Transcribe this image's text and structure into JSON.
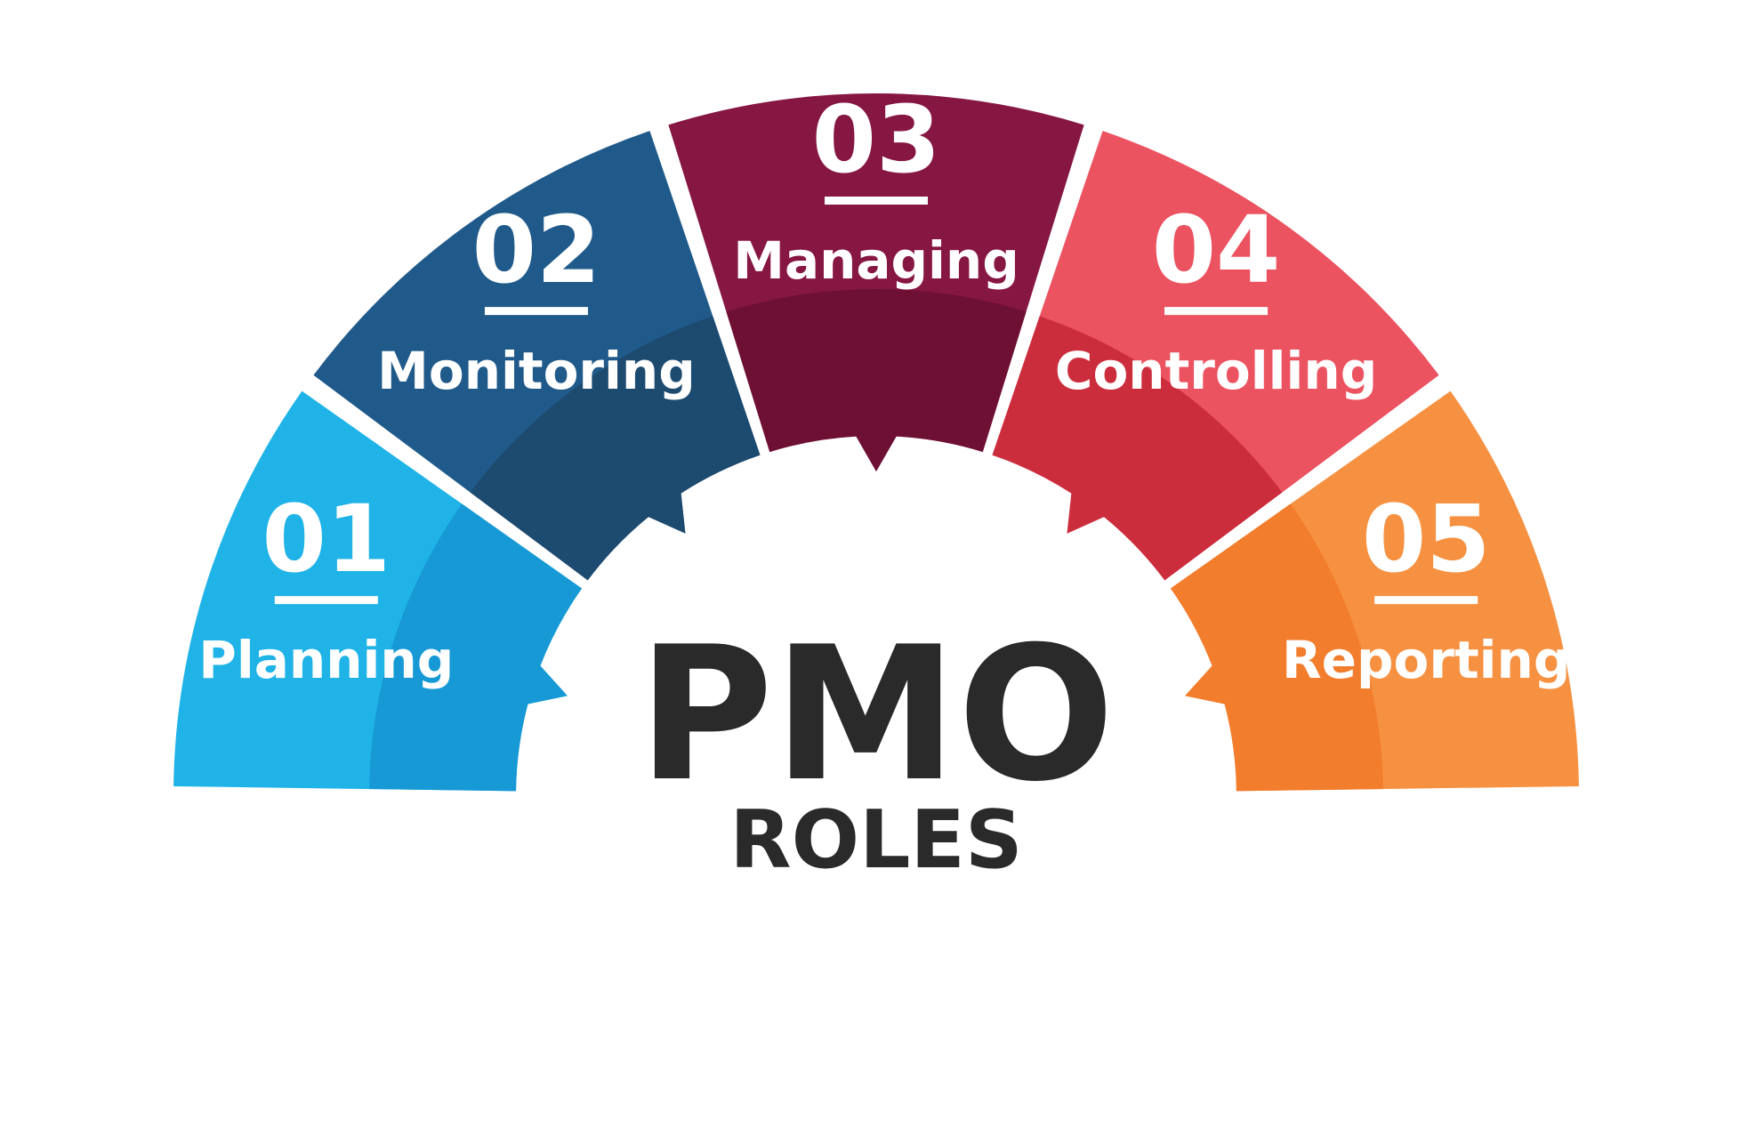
{
  "center": {
    "title": "PMO",
    "subtitle": "ROLES"
  },
  "segments": [
    {
      "number": "01",
      "label": "Planning",
      "color": "#1fb3e8",
      "shade": "#1799d6"
    },
    {
      "number": "02",
      "label": "Monitoring",
      "color": "#205a8a",
      "shade": "#1d4a6f"
    },
    {
      "number": "03",
      "label": "Managing",
      "color": "#861642",
      "shade": "#6e1034"
    },
    {
      "number": "04",
      "label": "Controlling",
      "color": "#ec5361",
      "shade": "#cc2d3d"
    },
    {
      "number": "05",
      "label": "Reporting",
      "color": "#f69141",
      "shade": "#f27d2c"
    }
  ]
}
